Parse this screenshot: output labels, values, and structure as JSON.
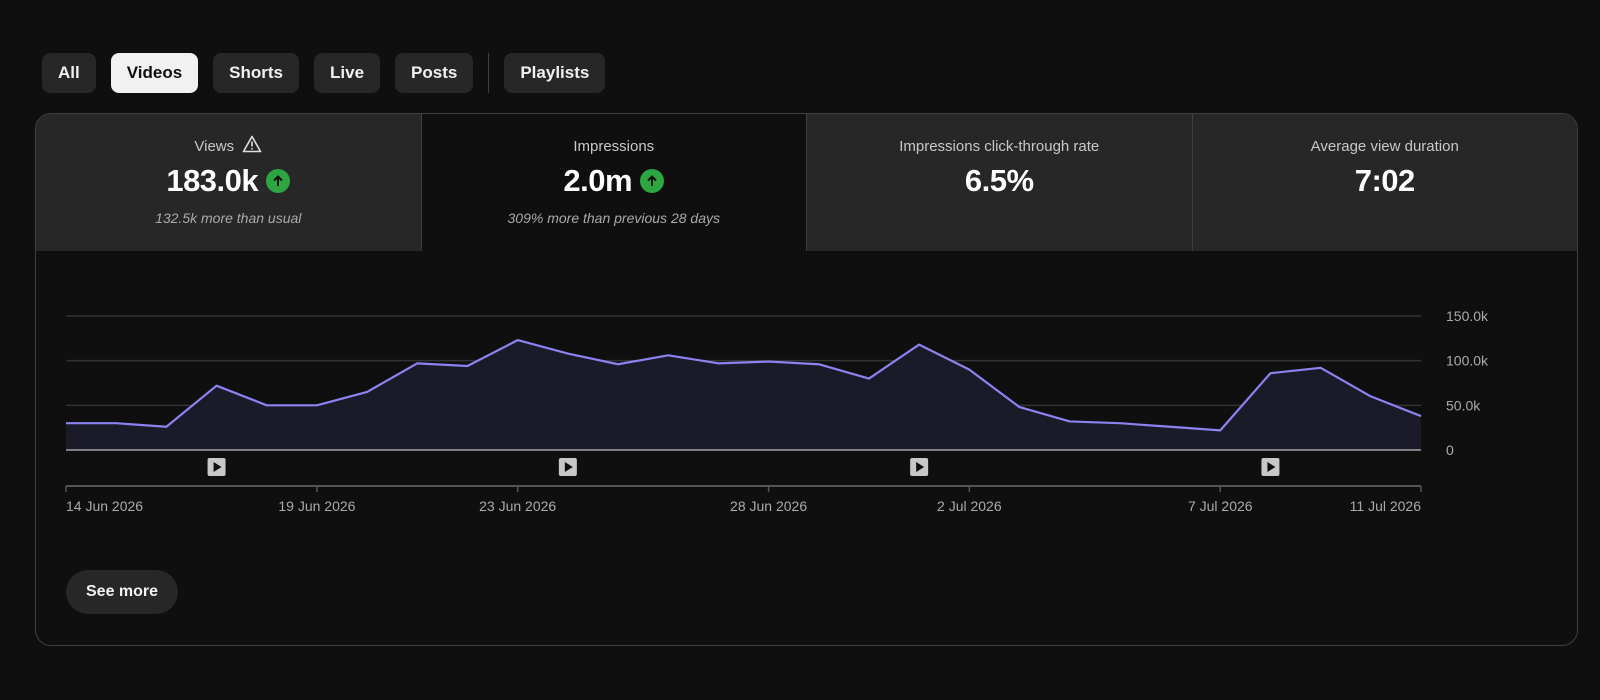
{
  "tabs": [
    {
      "label": "All",
      "active": false
    },
    {
      "label": "Videos",
      "active": true
    },
    {
      "label": "Shorts",
      "active": false
    },
    {
      "label": "Live",
      "active": false
    },
    {
      "label": "Posts",
      "active": false
    },
    {
      "label": "Playlists",
      "active": false
    }
  ],
  "metrics": [
    {
      "title": "Views",
      "value": "183.0k",
      "sub": "132.5k more than usual",
      "warning": true,
      "trend": "up"
    },
    {
      "title": "Impressions",
      "value": "2.0m",
      "sub": "309% more than previous 28 days",
      "warning": false,
      "trend": "up"
    },
    {
      "title": "Impressions click-through rate",
      "value": "6.5%",
      "sub": "",
      "warning": false,
      "trend": "none"
    },
    {
      "title": "Average view duration",
      "value": "7:02",
      "sub": "",
      "warning": false,
      "trend": "none"
    }
  ],
  "colors": {
    "line": "#8c82f0",
    "area": "#1b1a29",
    "positive": "#2ba640"
  },
  "see_more_label": "See more",
  "chart_data": {
    "type": "area",
    "series": [
      {
        "values": [
          30,
          30,
          26,
          72,
          50,
          50,
          65,
          97,
          94,
          123,
          108,
          96,
          106,
          97,
          99,
          96,
          80,
          118,
          90,
          48,
          32,
          30,
          26,
          22,
          86,
          92,
          60,
          38
        ]
      }
    ],
    "x": [
      "14 Jun 2026",
      "15 Jun 2026",
      "16 Jun 2026",
      "17 Jun 2026",
      "18 Jun 2026",
      "19 Jun 2026",
      "20 Jun 2026",
      "21 Jun 2026",
      "22 Jun 2026",
      "23 Jun 2026",
      "24 Jun 2026",
      "25 Jun 2026",
      "26 Jun 2026",
      "27 Jun 2026",
      "28 Jun 2026",
      "29 Jun 2026",
      "30 Jun 2026",
      "1 Jul 2026",
      "2 Jul 2026",
      "3 Jul 2026",
      "4 Jul 2026",
      "5 Jul 2026",
      "6 Jul 2026",
      "7 Jul 2026",
      "8 Jul 2026",
      "9 Jul 2026",
      "10 Jul 2026",
      "11 Jul 2026"
    ],
    "x_tick_labels": [
      "14 Jun 2026",
      "19 Jun 2026",
      "23 Jun 2026",
      "28 Jun 2026",
      "2 Jul 2026",
      "7 Jul 2026",
      "11 Jul 2026"
    ],
    "y_tick_labels": [
      "150.0k",
      "100.0k",
      "50.0k",
      "0"
    ],
    "ylim": [
      0,
      150
    ],
    "y_unit": "k",
    "grid": true,
    "video_markers": [
      "17 Jun 2026",
      "24 Jun 2026",
      "1 Jul 2026",
      "8 Jul 2026"
    ],
    "title": "",
    "xlabel": "",
    "ylabel": ""
  }
}
